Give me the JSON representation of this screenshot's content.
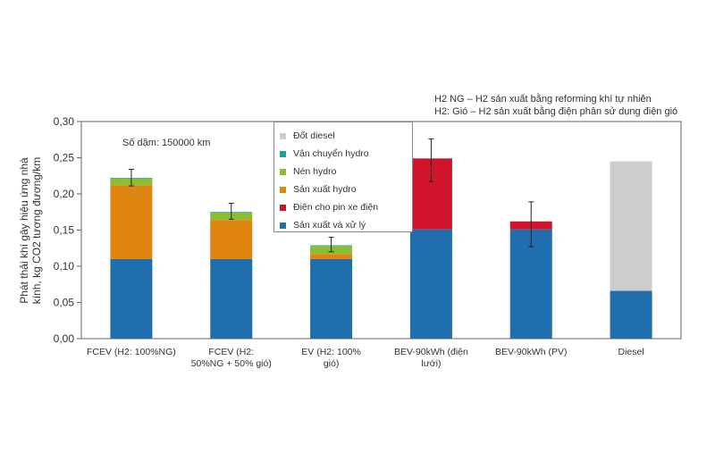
{
  "notes": [
    "H2 NG – H2 sản xuất bằng reforming khí tự nhiên",
    "H2: Gió – H2 sản xuất bằng điện phân sử dụng điện  gió"
  ],
  "annotation": "Số dặm: 150000 km",
  "ylabel_lines": [
    "Phát thải khí gây hiệu ứng nhà",
    "kính, kg CO2 tương đương/km"
  ],
  "colors": {
    "san_xuat_va_xu_ly": "#1f6fae",
    "dien_cho_pin": "#d0142b",
    "san_xuat_hydro": "#de8611",
    "nen_hydro": "#8cbd2e",
    "van_chuyen_hydro": "#1aa39a",
    "dot_diesel": "#cdcdcd"
  },
  "chart_data": {
    "type": "bar",
    "stacked": true,
    "ylim": [
      0,
      0.3
    ],
    "yticks": [
      "0,00",
      "0,05",
      "0,10",
      "0,15",
      "0,20",
      "0,25",
      "0,30"
    ],
    "grid": false,
    "legend_position": "top-center",
    "categories": [
      [
        "FCEV (H2: 100%NG)"
      ],
      [
        "FCEV (H2:",
        "50%NG + 50% gió)"
      ],
      [
        "EV (H2: 100%",
        "gió)"
      ],
      [
        "BEV-90kWh (điện",
        "lưới)"
      ],
      [
        "BEV-90kWh (PV)"
      ],
      [
        "Diesel"
      ]
    ],
    "series": [
      {
        "name": "Sản xuất và xử lý",
        "color_key": "san_xuat_va_xu_ly",
        "values": [
          0.11,
          0.11,
          0.11,
          0.151,
          0.151,
          0.066
        ]
      },
      {
        "name": "Điện cho pin xe điện",
        "color_key": "dien_cho_pin",
        "values": [
          0,
          0,
          0,
          0.098,
          0.011,
          0
        ]
      },
      {
        "name": "Sản xuất hydro",
        "color_key": "san_xuat_hydro",
        "values": [
          0.102,
          0.054,
          0.007,
          0,
          0,
          0
        ]
      },
      {
        "name": "Nén hydro",
        "color_key": "nen_hydro",
        "values": [
          0.009,
          0.01,
          0.011,
          0,
          0,
          0
        ]
      },
      {
        "name": "Vận chuyển hydro",
        "color_key": "van_chuyen_hydro",
        "values": [
          0.001,
          0.001,
          0.001,
          0,
          0,
          0
        ]
      },
      {
        "name": "Đốt diesel",
        "color_key": "dot_diesel",
        "values": [
          0,
          0,
          0,
          0,
          0,
          0.179
        ]
      }
    ],
    "error_bars": [
      {
        "low": 0.211,
        "high": 0.234
      },
      {
        "low": 0.165,
        "high": 0.187
      },
      {
        "low": 0.12,
        "high": 0.14
      },
      {
        "low": 0.217,
        "high": 0.276
      },
      {
        "low": 0.127,
        "high": 0.189
      },
      null
    ]
  }
}
